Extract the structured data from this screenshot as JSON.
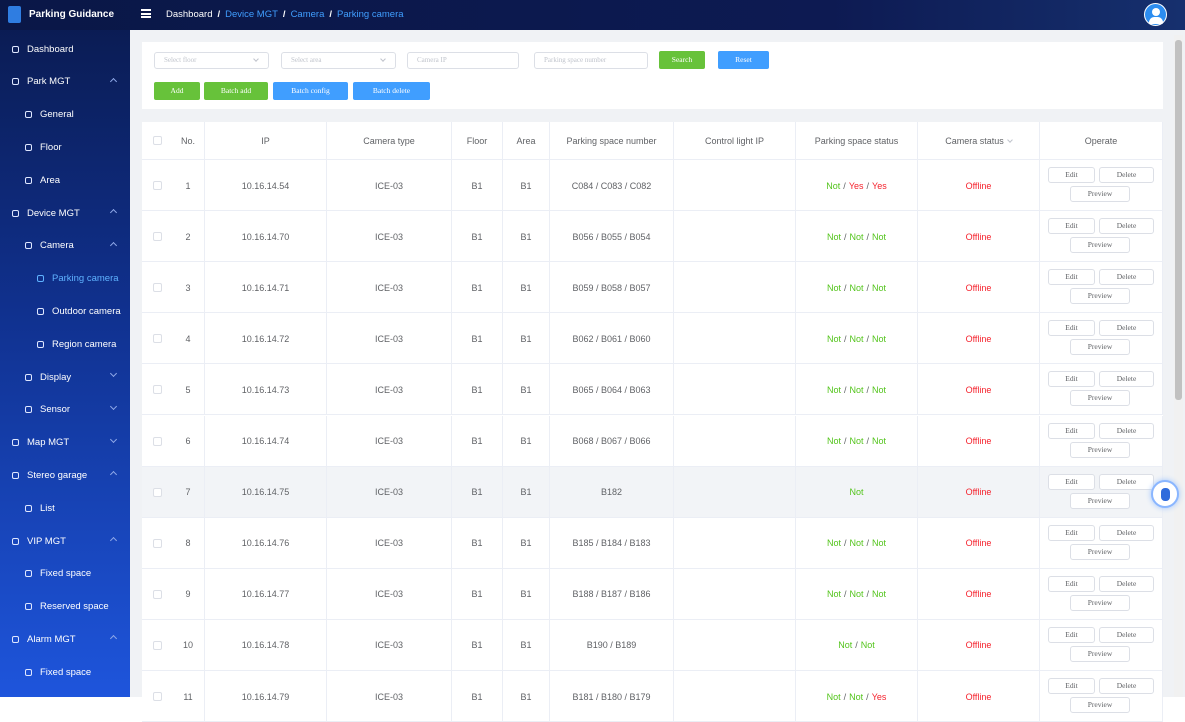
{
  "app_title": "Parking Guidance",
  "breadcrumb": {
    "items": [
      "Dashboard",
      "Device MGT",
      "Camera",
      "Parking camera"
    ],
    "separator": "/"
  },
  "sidebar": [
    {
      "label": "Dashboard",
      "level": 0
    },
    {
      "label": "Park MGT",
      "level": 0,
      "chevron": "up"
    },
    {
      "label": "General",
      "level": 1
    },
    {
      "label": "Floor",
      "level": 1
    },
    {
      "label": "Area",
      "level": 1
    },
    {
      "label": "Device MGT",
      "level": 0,
      "chevron": "up"
    },
    {
      "label": "Camera",
      "level": 1,
      "chevron": "up"
    },
    {
      "label": "Parking camera",
      "level": 2,
      "active": true
    },
    {
      "label": "Outdoor camera",
      "level": 2
    },
    {
      "label": "Region camera",
      "level": 2
    },
    {
      "label": "Display",
      "level": 1,
      "chevron": "down"
    },
    {
      "label": "Sensor",
      "level": 1,
      "chevron": "down"
    },
    {
      "label": "Map MGT",
      "level": 0,
      "chevron": "down"
    },
    {
      "label": "Stereo garage",
      "level": 0,
      "chevron": "up"
    },
    {
      "label": "List",
      "level": 1
    },
    {
      "label": "VIP MGT",
      "level": 0,
      "chevron": "up"
    },
    {
      "label": "Fixed space",
      "level": 1
    },
    {
      "label": "Reserved space",
      "level": 1
    },
    {
      "label": "Alarm MGT",
      "level": 0,
      "chevron": "up"
    },
    {
      "label": "Fixed space",
      "level": 1
    }
  ],
  "filters": {
    "inputs": [
      {
        "placeholder": "Select floor",
        "select": true
      },
      {
        "placeholder": "Select area",
        "select": true
      },
      {
        "placeholder": "Camera IP"
      },
      {
        "placeholder": "Parking space number"
      }
    ],
    "buttons": [
      "Search",
      "Reset"
    ]
  },
  "toolbar": [
    "Add",
    "Batch add",
    "Batch config",
    "Batch delete"
  ],
  "table": {
    "columns": [
      "No.",
      "IP",
      "Camera type",
      "Floor",
      "Area",
      "Parking space number",
      "Control light IP",
      "Parking space status",
      "Camera status",
      "Operate"
    ],
    "status_separator": "/",
    "actions": [
      "Edit",
      "Delete",
      "Preview"
    ],
    "rows": [
      {
        "no": 1,
        "ip": "10.16.14.54",
        "camera_type": "ICE-03",
        "floor": "B1",
        "area": "B1",
        "spaces": "C084 / C083 / C082",
        "space_status": [
          "Not",
          "Yes",
          "Yes"
        ],
        "camera_status": "Offline"
      },
      {
        "no": 2,
        "ip": "10.16.14.70",
        "camera_type": "ICE-03",
        "floor": "B1",
        "area": "B1",
        "spaces": "B056 / B055 / B054",
        "space_status": [
          "Not",
          "Not",
          "Not"
        ],
        "camera_status": "Offline"
      },
      {
        "no": 3,
        "ip": "10.16.14.71",
        "camera_type": "ICE-03",
        "floor": "B1",
        "area": "B1",
        "spaces": "B059 / B058 / B057",
        "space_status": [
          "Not",
          "Not",
          "Not"
        ],
        "camera_status": "Offline"
      },
      {
        "no": 4,
        "ip": "10.16.14.72",
        "camera_type": "ICE-03",
        "floor": "B1",
        "area": "B1",
        "spaces": "B062 / B061 / B060",
        "space_status": [
          "Not",
          "Not",
          "Not"
        ],
        "camera_status": "Offline"
      },
      {
        "no": 5,
        "ip": "10.16.14.73",
        "camera_type": "ICE-03",
        "floor": "B1",
        "area": "B1",
        "spaces": "B065 / B064 / B063",
        "space_status": [
          "Not",
          "Not",
          "Not"
        ],
        "camera_status": "Offline"
      },
      {
        "no": 6,
        "ip": "10.16.14.74",
        "camera_type": "ICE-03",
        "floor": "B1",
        "area": "B1",
        "spaces": "B068 / B067 / B066",
        "space_status": [
          "Not",
          "Not",
          "Not"
        ],
        "camera_status": "Offline"
      },
      {
        "no": 7,
        "ip": "10.16.14.75",
        "camera_type": "ICE-03",
        "floor": "B1",
        "area": "B1",
        "spaces": "B182",
        "space_status": [
          "Not"
        ],
        "camera_status": "Offline",
        "hover": true
      },
      {
        "no": 8,
        "ip": "10.16.14.76",
        "camera_type": "ICE-03",
        "floor": "B1",
        "area": "B1",
        "spaces": "B185 / B184 / B183",
        "space_status": [
          "Not",
          "Not",
          "Not"
        ],
        "camera_status": "Offline"
      },
      {
        "no": 9,
        "ip": "10.16.14.77",
        "camera_type": "ICE-03",
        "floor": "B1",
        "area": "B1",
        "spaces": "B188 / B187 / B186",
        "space_status": [
          "Not",
          "Not",
          "Not"
        ],
        "camera_status": "Offline"
      },
      {
        "no": 10,
        "ip": "10.16.14.78",
        "camera_type": "ICE-03",
        "floor": "B1",
        "area": "B1",
        "spaces": "B190 / B189",
        "space_status": [
          "Not",
          "Not"
        ],
        "camera_status": "Offline"
      },
      {
        "no": 11,
        "ip": "10.16.14.79",
        "camera_type": "ICE-03",
        "floor": "B1",
        "area": "B1",
        "spaces": "B181 / B180 / B179",
        "space_status": [
          "Not",
          "Not",
          "Yes"
        ],
        "camera_status": "Offline"
      }
    ]
  }
}
